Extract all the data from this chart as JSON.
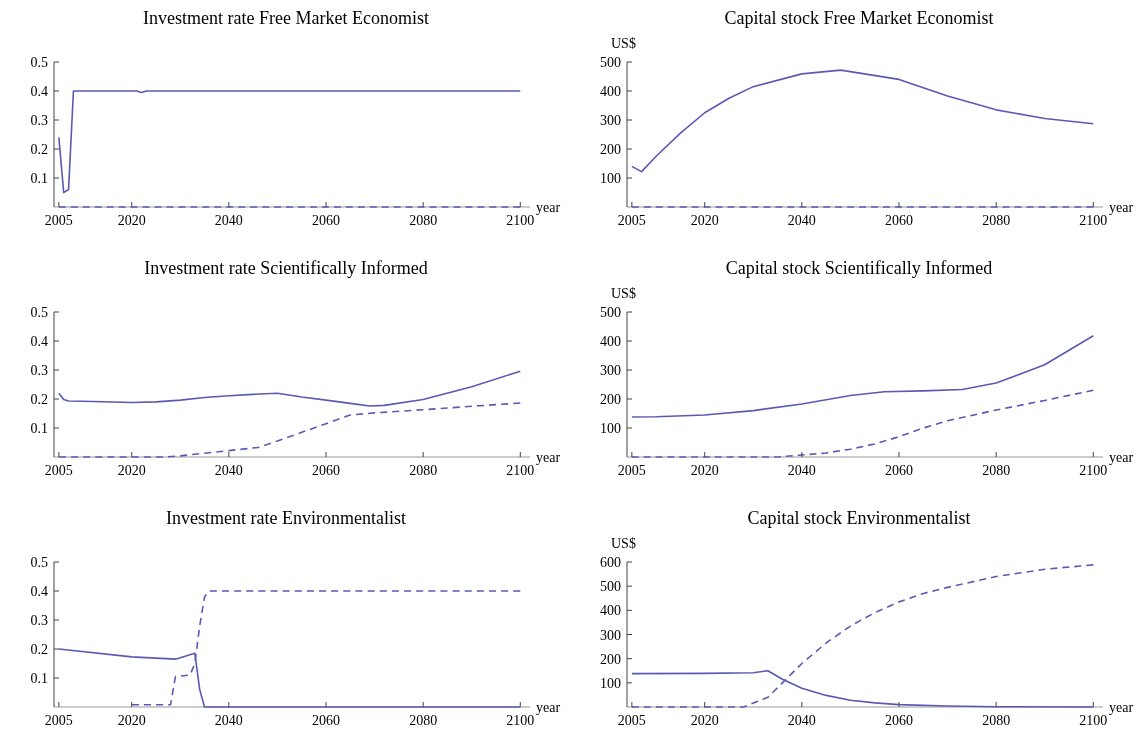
{
  "chart_data": [
    {
      "type": "line",
      "title": "Investment rate Free Market Economist",
      "xlabel": "year",
      "xlim": [
        2004,
        2102
      ],
      "xticks": [
        2005,
        2020,
        2040,
        2060,
        2080,
        2100
      ],
      "ylim": [
        0,
        0.5
      ],
      "yticks": [
        0.1,
        0.2,
        0.3,
        0.4,
        0.5
      ],
      "series": [
        {
          "color": "#5a5ab4",
          "line_style": "solid",
          "x": [
            2005,
            2006,
            2007,
            2008,
            2021,
            2022,
            2023,
            2100
          ],
          "values": [
            0.24,
            0.05,
            0.06,
            0.4,
            0.4,
            0.395,
            0.4,
            0.4
          ]
        },
        {
          "color": "#5a5ab4",
          "line_style": "dashed",
          "x": [
            2005,
            2100
          ],
          "values": [
            0,
            0
          ]
        }
      ]
    },
    {
      "type": "line",
      "title": "Capital stock Free Market Economist",
      "xlabel": "year",
      "ylabel": "US$",
      "xlim": [
        2004,
        2102
      ],
      "xticks": [
        2005,
        2020,
        2040,
        2060,
        2080,
        2100
      ],
      "ylim": [
        0,
        500
      ],
      "yticks": [
        100,
        200,
        300,
        400,
        500
      ],
      "series": [
        {
          "color": "#5a5ab4",
          "line_style": "solid",
          "x": [
            2005,
            2007,
            2010,
            2015,
            2020,
            2025,
            2030,
            2040,
            2048,
            2060,
            2070,
            2080,
            2090,
            2100
          ],
          "values": [
            140,
            122,
            175,
            255,
            325,
            375,
            415,
            459,
            472,
            440,
            383,
            335,
            305,
            287
          ]
        },
        {
          "color": "#5a5ab4",
          "line_style": "dashed",
          "x": [
            2005,
            2100
          ],
          "values": [
            0,
            0
          ]
        }
      ]
    },
    {
      "type": "line",
      "title": "Investment rate Scientifically Informed",
      "xlabel": "year",
      "xlim": [
        2004,
        2102
      ],
      "xticks": [
        2005,
        2020,
        2040,
        2060,
        2080,
        2100
      ],
      "ylim": [
        0,
        0.5
      ],
      "yticks": [
        0.1,
        0.2,
        0.3,
        0.4,
        0.5
      ],
      "series": [
        {
          "color": "#5a5ab4",
          "line_style": "solid",
          "x": [
            2005,
            2006,
            2007,
            2010,
            2020,
            2025,
            2030,
            2035,
            2040,
            2045,
            2050,
            2055,
            2060,
            2065,
            2069,
            2072,
            2080,
            2090,
            2100
          ],
          "values": [
            0.22,
            0.198,
            0.193,
            0.192,
            0.188,
            0.19,
            0.196,
            0.205,
            0.211,
            0.216,
            0.22,
            0.207,
            0.196,
            0.185,
            0.176,
            0.178,
            0.198,
            0.242,
            0.296
          ]
        },
        {
          "color": "#5a5ab4",
          "line_style": "dashed",
          "x": [
            2005,
            2027,
            2030,
            2035,
            2040,
            2046,
            2050,
            2055,
            2060,
            2065,
            2070,
            2080,
            2090,
            2100
          ],
          "values": [
            0,
            0,
            0.004,
            0.013,
            0.022,
            0.033,
            0.055,
            0.085,
            0.115,
            0.145,
            0.152,
            0.163,
            0.175,
            0.186
          ]
        }
      ]
    },
    {
      "type": "line",
      "title": "Capital stock Scientifically Informed",
      "xlabel": "year",
      "ylabel": "US$",
      "xlim": [
        2004,
        2102
      ],
      "xticks": [
        2005,
        2020,
        2040,
        2060,
        2080,
        2100
      ],
      "ylim": [
        0,
        500
      ],
      "yticks": [
        100,
        200,
        300,
        400,
        500
      ],
      "series": [
        {
          "color": "#5a5ab4",
          "line_style": "solid",
          "x": [
            2005,
            2010,
            2020,
            2030,
            2040,
            2050,
            2057,
            2065,
            2073,
            2080,
            2090,
            2100
          ],
          "values": [
            138,
            139,
            145,
            160,
            183,
            212,
            225,
            228,
            233,
            255,
            318,
            418
          ]
        },
        {
          "color": "#5a5ab4",
          "line_style": "dashed",
          "x": [
            2005,
            2035,
            2040,
            2045,
            2050,
            2055,
            2060,
            2065,
            2070,
            2080,
            2090,
            2100
          ],
          "values": [
            0,
            0,
            7,
            14,
            27,
            45,
            70,
            100,
            125,
            162,
            195,
            230
          ]
        }
      ]
    },
    {
      "type": "line",
      "title": "Investment rate Environmentalist",
      "xlabel": "year",
      "xlim": [
        2004,
        2102
      ],
      "xticks": [
        2005,
        2020,
        2040,
        2060,
        2080,
        2100
      ],
      "ylim": [
        0,
        0.5
      ],
      "yticks": [
        0.1,
        0.2,
        0.3,
        0.4,
        0.5
      ],
      "series": [
        {
          "color": "#5a5ab4",
          "line_style": "solid",
          "x": [
            2005,
            2020,
            2029,
            2033,
            2034,
            2035,
            2036,
            2100
          ],
          "values": [
            0.2,
            0.173,
            0.165,
            0.185,
            0.06,
            0.0,
            0,
            0
          ]
        },
        {
          "color": "#5a5ab4",
          "line_style": "dashed",
          "x": [
            2020,
            2028,
            2029,
            2032,
            2033,
            2034,
            2035,
            2036,
            2100
          ],
          "values": [
            0.008,
            0.008,
            0.105,
            0.11,
            0.15,
            0.28,
            0.38,
            0.4,
            0.4
          ]
        }
      ]
    },
    {
      "type": "line",
      "title": "Capital stock Environmentalist",
      "xlabel": "year",
      "ylabel": "US$",
      "xlim": [
        2004,
        2102
      ],
      "xticks": [
        2005,
        2020,
        2040,
        2060,
        2080,
        2100
      ],
      "ylim": [
        0,
        600
      ],
      "yticks": [
        100,
        200,
        300,
        400,
        500,
        600
      ],
      "series": [
        {
          "color": "#5a5ab4",
          "line_style": "solid",
          "x": [
            2005,
            2020,
            2030,
            2033,
            2036,
            2040,
            2045,
            2050,
            2055,
            2060,
            2070,
            2080,
            2100
          ],
          "values": [
            138,
            139,
            142,
            150,
            115,
            78,
            48,
            28,
            17,
            10,
            4,
            1,
            0
          ]
        },
        {
          "color": "#5a5ab4",
          "line_style": "dashed",
          "x": [
            2005,
            2028,
            2033,
            2036,
            2040,
            2045,
            2050,
            2055,
            2060,
            2065,
            2070,
            2080,
            2090,
            2100
          ],
          "values": [
            0,
            0,
            40,
            100,
            180,
            265,
            335,
            390,
            435,
            470,
            495,
            540,
            570,
            588
          ]
        }
      ]
    }
  ]
}
